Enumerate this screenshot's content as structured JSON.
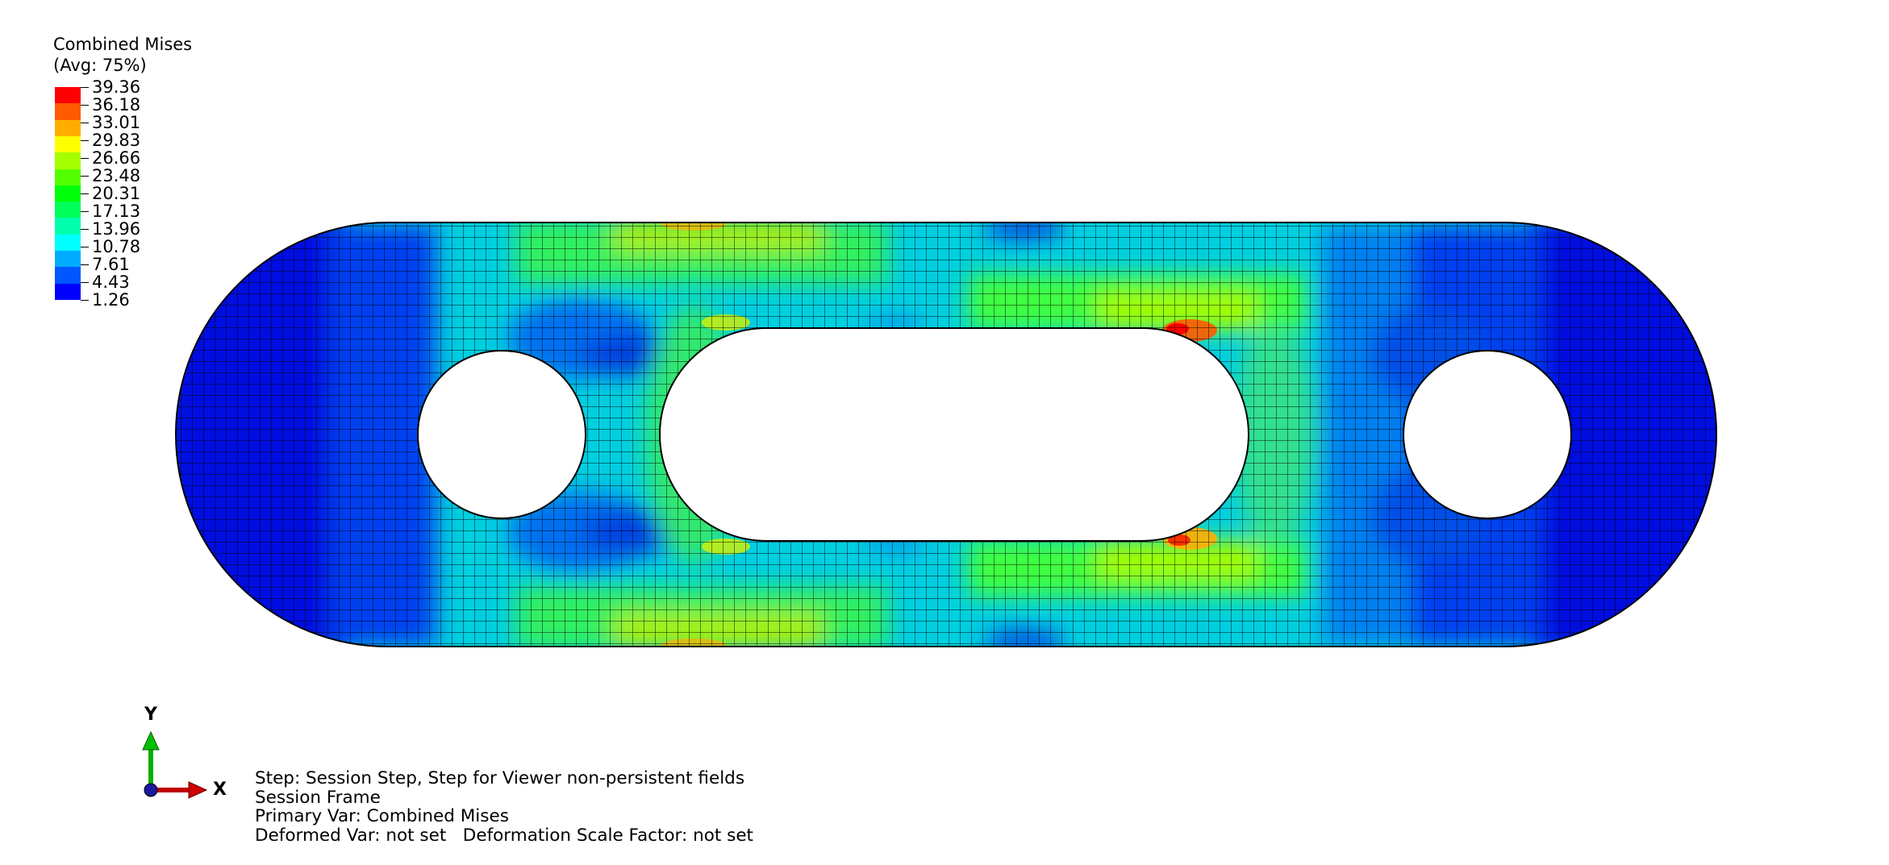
{
  "legend": {
    "title": "Combined Mises",
    "subtitle": "(Avg: 75%)",
    "values": [
      "39.36",
      "36.18",
      "33.01",
      "29.83",
      "26.66",
      "23.48",
      "20.31",
      "17.13",
      "13.96",
      "10.78",
      "7.61",
      "4.43",
      "1.26"
    ],
    "colors": [
      "#ff0000",
      "#ff5a00",
      "#ffae00",
      "#ffff00",
      "#a6ff00",
      "#54ff00",
      "#00ff0a",
      "#00ff5a",
      "#00ffad",
      "#00ffff",
      "#00acff",
      "#0056ff",
      "#0000ff"
    ]
  },
  "triad": {
    "y_label": "Y",
    "x_label": "X"
  },
  "info": {
    "step": "Step: Session Step, Step for Viewer non-persistent fields",
    "frame": "Session Frame",
    "primary": "Primary Var: Combined Mises",
    "deformed": "Deformed Var: not set   Deformation Scale Factor: not set"
  }
}
